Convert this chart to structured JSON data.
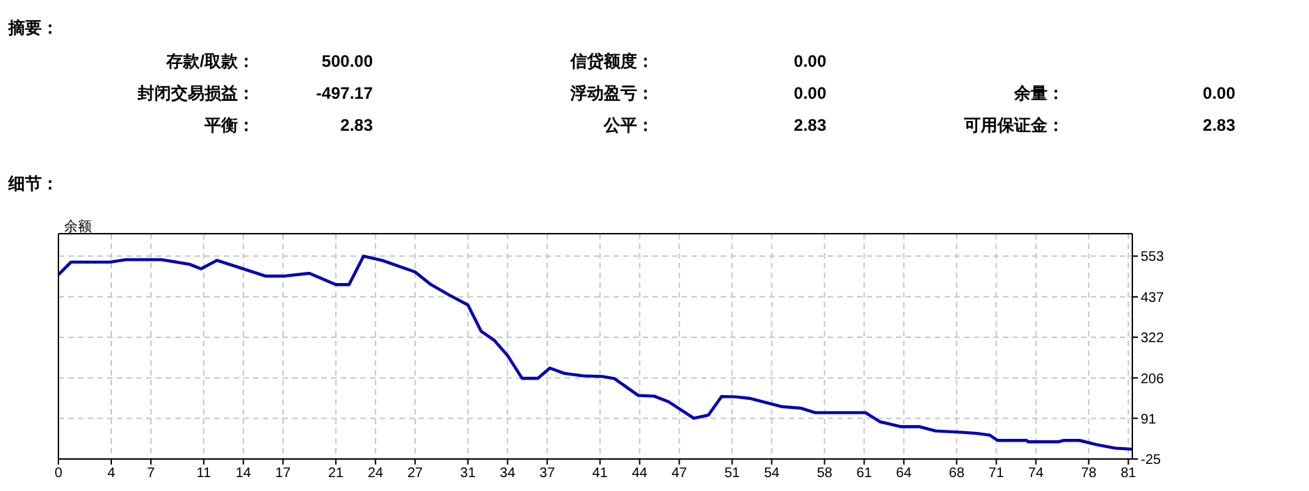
{
  "chart_data": {
    "type": "line",
    "annotations": [
      "摘要：",
      "存款/取款：",
      "500.00",
      "信贷额度：",
      "0.00",
      "封闭交易损益：",
      "-497.17",
      "浮动盈亏：",
      "0.00",
      "余量：",
      "0.00",
      "平衡：",
      "2.83",
      "公平：",
      "2.83",
      "可用保证金：",
      "2.83",
      "细节："
    ],
    "series": [
      {
        "name": "余额",
        "color": "#0000b0",
        "x": [
          0,
          0.95,
          3.9,
          5.1,
          7.8,
          9.9,
          10.8,
          12.0,
          13.4,
          15.7,
          17.0,
          19.0,
          21.0,
          22.0,
          23.1,
          24.5,
          27.0,
          28.2,
          29.6,
          31.0,
          32.0,
          33.0,
          34.0,
          35.1,
          36.3,
          37.2,
          38.3,
          39.7,
          41.2,
          42.1,
          43.9,
          45.1,
          46.2,
          48.1,
          49.2,
          50.2,
          51.3,
          52.3,
          54.8,
          56.2,
          57.3,
          61.1,
          62.2,
          63.8,
          65.2,
          66.4,
          68.4,
          69.5,
          70.5,
          71.1,
          73.3,
          73.4,
          75.7,
          76.1,
          77.3,
          78.6,
          80.0,
          81.3
        ],
        "values": [
          500,
          536,
          536,
          543,
          543,
          530,
          517,
          541,
          524,
          496,
          496,
          504,
          472,
          472,
          553,
          541,
          508,
          472,
          442,
          414,
          339,
          313,
          270,
          205,
          205,
          234,
          219,
          212,
          210,
          204,
          156,
          154,
          138,
          91,
          100,
          153,
          152,
          148,
          124,
          120,
          107,
          107,
          81,
          67,
          67,
          55,
          51,
          48,
          43,
          28,
          28,
          24,
          24,
          28,
          28,
          16,
          6,
          3
        ]
      }
    ],
    "xlim": [
      0,
      81.3
    ],
    "xticks": [
      0,
      4,
      7,
      11,
      14,
      17,
      21,
      24,
      27,
      31,
      34,
      37,
      41,
      44,
      47,
      51,
      54,
      58,
      61,
      64,
      68,
      71,
      74,
      78,
      81
    ],
    "ylim": [
      -25,
      617
    ],
    "yticks": [
      -25,
      91,
      206,
      322,
      437,
      553
    ],
    "grid": true,
    "legend": "top left",
    "marker": "none",
    "line_style": "solid"
  }
}
